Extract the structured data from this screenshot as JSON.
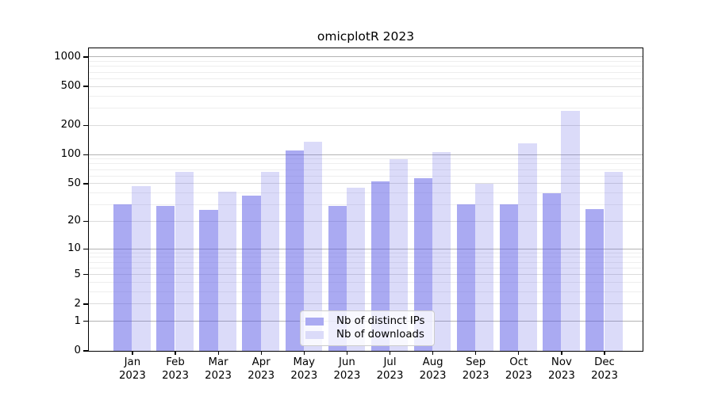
{
  "title": "omicplotR 2023",
  "chart_data": {
    "type": "bar",
    "title": "omicplotR 2023",
    "categories": [
      "Jan",
      "Feb",
      "Mar",
      "Apr",
      "May",
      "Jun",
      "Jul",
      "Aug",
      "Sep",
      "Oct",
      "Nov",
      "Dec"
    ],
    "year_label": "2023",
    "series": [
      {
        "name": "Nb of distinct IPs",
        "values": [
          30,
          29,
          26,
          37,
          110,
          29,
          52,
          56,
          30,
          30,
          39,
          27
        ],
        "color_rgba": "rgba(85,85,229,0.5)",
        "color_hex": "#aaaaf2"
      },
      {
        "name": "Nb of downloads",
        "values": [
          47,
          66,
          41,
          65,
          135,
          45,
          88,
          105,
          49,
          130,
          280,
          66
        ],
        "color_rgba": "rgba(85,85,229,0.21)",
        "color_hex": "#dbdbf9"
      }
    ],
    "yscale": "log1p",
    "y_ticks": [
      0,
      1,
      2,
      5,
      10,
      20,
      50,
      100,
      200,
      500,
      1000
    ],
    "y_decade_ticks": [
      1,
      10,
      100,
      1000
    ],
    "y_minor_gridlines": [
      3,
      4,
      6,
      7,
      8,
      9,
      30,
      40,
      60,
      70,
      80,
      90,
      300,
      400,
      600,
      700,
      800,
      900
    ],
    "ylim": [
      0,
      1100
    ],
    "grid": true,
    "legend_position": "lower center"
  },
  "legend": {
    "items": [
      "Nb of distinct IPs",
      "Nb of downloads"
    ]
  },
  "colors": {
    "bar_distinct_ips": "rgba(85,85,229,0.5)",
    "bar_downloads": "rgba(85,85,229,0.21)",
    "grid_decade": "#b3b3b3",
    "grid_labeled": "#dcdcdc",
    "grid_minor": "#eeeeee",
    "axis": "#000000",
    "legend_border": "#cccccc",
    "legend_bg": "rgba(255,255,255,0.8)",
    "background": "#ffffff",
    "text": "#000000"
  }
}
